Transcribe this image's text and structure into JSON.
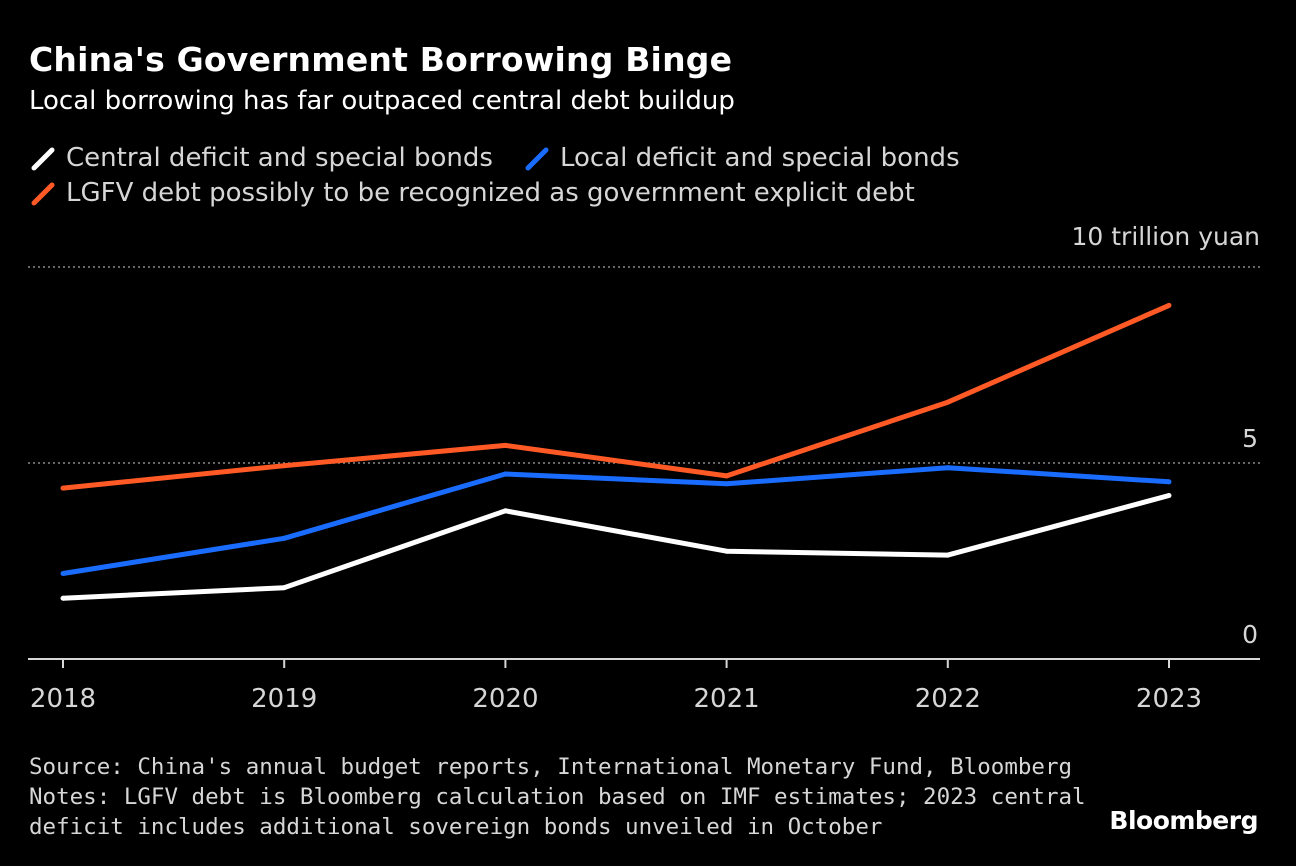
{
  "title": "China's Government Borrowing Binge",
  "subtitle": "Local borrowing has far outpaced central debt buildup",
  "legend": [
    {
      "label": "Central deficit and special bonds",
      "color": "#ffffff"
    },
    {
      "label": "Local deficit and special bonds",
      "color": "#1a6cff"
    },
    {
      "label": "LGFV debt possibly to be recognized as government explicit debt",
      "color": "#ff5a26"
    }
  ],
  "unit_label": "10 trillion yuan",
  "footer": {
    "source": "Source: China's annual budget reports, International Monetary Fund, Bloomberg",
    "notes_line1": "Notes: LGFV debt is Bloomberg calculation based on IMF estimates; 2023 central",
    "notes_line2": "deficit includes additional sovereign bonds unveiled in October"
  },
  "brand": "Bloomberg",
  "chart_data": {
    "type": "line",
    "title": "China's Government Borrowing Binge",
    "subtitle": "Local borrowing has far outpaced central debt buildup",
    "ylabel": "10 trillion yuan",
    "x": [
      "2018",
      "2019",
      "2020",
      "2021",
      "2022",
      "2023"
    ],
    "ylim": [
      0,
      10
    ],
    "yticks": [
      0,
      5,
      10
    ],
    "ytick_labels": [
      "0",
      "5",
      "10 trillion yuan"
    ],
    "grid": true,
    "series": [
      {
        "name": "Central deficit and special bonds",
        "color": "#ffffff",
        "values": [
          1.55,
          1.82,
          3.78,
          2.75,
          2.65,
          4.17
        ]
      },
      {
        "name": "Local deficit and special bonds",
        "color": "#1a6cff",
        "values": [
          2.18,
          3.08,
          4.72,
          4.47,
          4.88,
          4.52
        ]
      },
      {
        "name": "LGFV debt possibly to be recognized as government explicit debt",
        "color": "#ff5a26",
        "values": [
          4.36,
          4.93,
          5.45,
          4.67,
          6.55,
          9.02
        ]
      }
    ]
  }
}
